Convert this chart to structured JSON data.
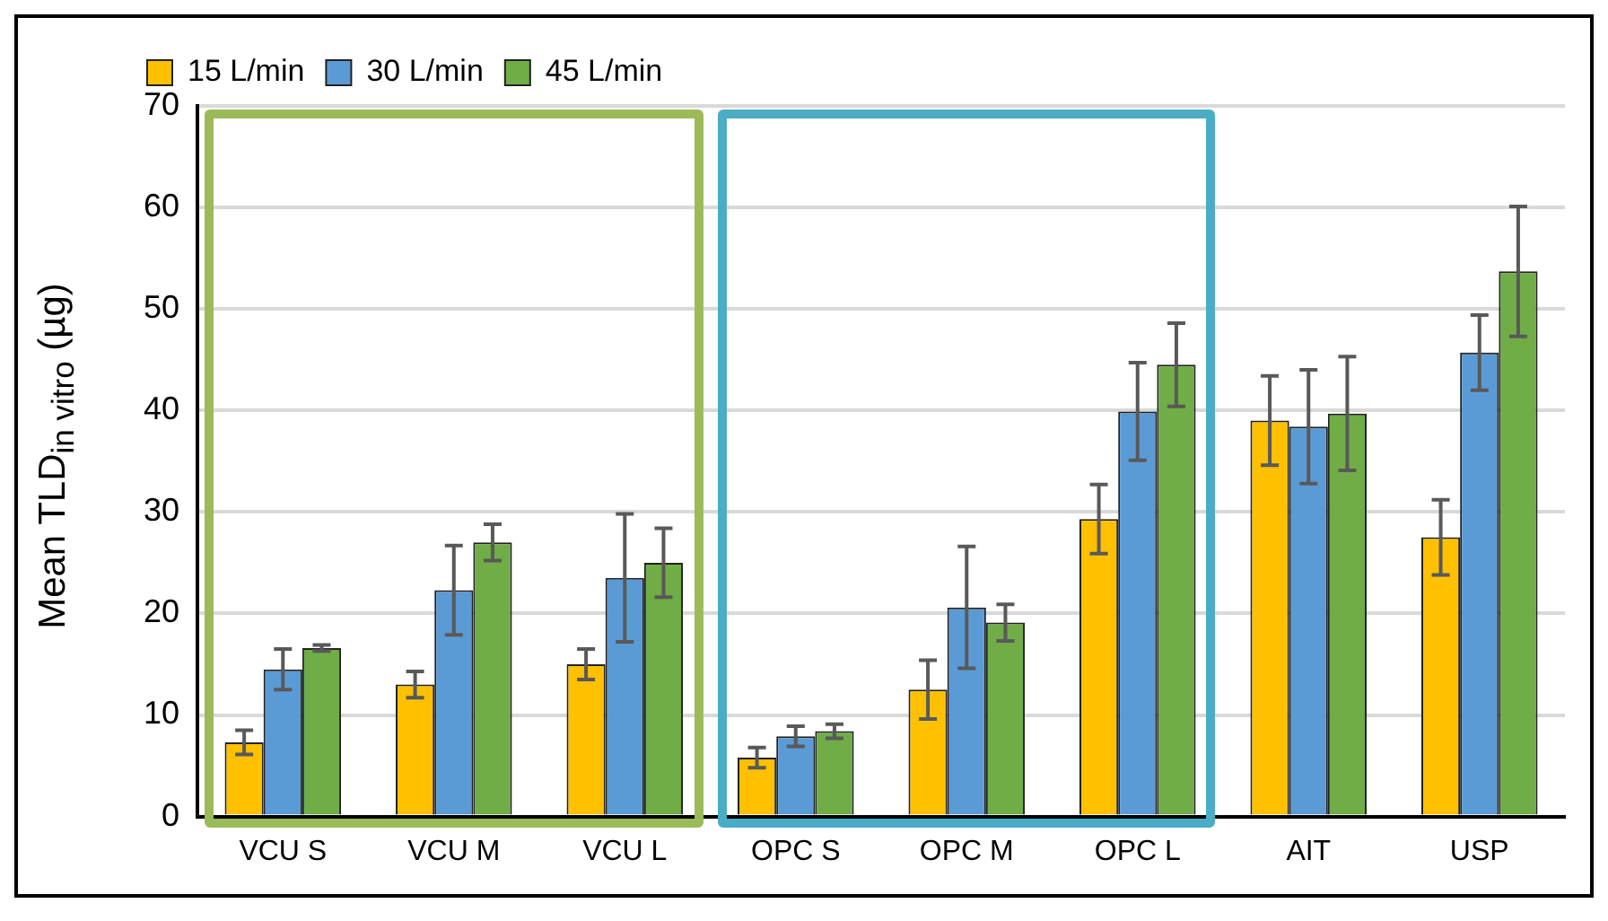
{
  "chart_data": {
    "type": "bar",
    "ylabel": "Mean TLD$_{in vitro}$ (µg)",
    "categories": [
      "VCU S",
      "VCU M",
      "VCU L",
      "OPC S",
      "OPC M",
      "OPC L",
      "AIT",
      "USP"
    ],
    "series": [
      {
        "name": "15 L/min",
        "color": "#ffc000",
        "values": [
          7.3,
          13,
          15,
          5.8,
          12.5,
          29.3,
          39,
          27.5
        ],
        "errors": [
          1.2,
          1.3,
          1.5,
          1,
          2.9,
          3.4,
          4.4,
          3.7
        ]
      },
      {
        "name": "30 L/min",
        "color": "#5b9bd5",
        "values": [
          14.5,
          22.3,
          23.5,
          7.9,
          20.6,
          39.9,
          38.4,
          45.7
        ],
        "errors": [
          2,
          4.4,
          6.3,
          1,
          6,
          4.8,
          5.6,
          3.7
        ]
      },
      {
        "name": "45 L/min",
        "color": "#70ad47",
        "values": [
          16.6,
          27,
          25,
          8.4,
          19.1,
          44.5,
          39.7,
          53.7
        ],
        "errors": [
          0.3,
          1.8,
          3.4,
          0.7,
          1.8,
          4.1,
          5.6,
          6.4
        ]
      }
    ],
    "ylim": [
      0,
      70
    ],
    "yticks": [
      0,
      10,
      20,
      30,
      40,
      50,
      60,
      70
    ],
    "grid": "y",
    "legend": "top left"
  }
}
